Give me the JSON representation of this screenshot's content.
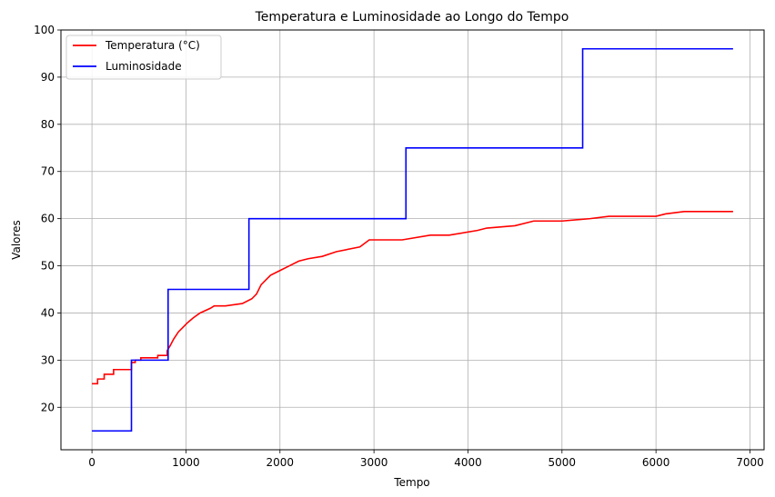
{
  "chart_data": {
    "type": "line",
    "title": "Temperatura e Luminosidade ao Longo do Tempo",
    "xlabel": "Tempo",
    "ylabel": "Valores",
    "xlim": [
      -330,
      7150
    ],
    "ylim": [
      11,
      100
    ],
    "xticks": [
      0,
      1000,
      2000,
      3000,
      4000,
      5000,
      6000,
      7000
    ],
    "yticks": [
      20,
      30,
      40,
      50,
      60,
      70,
      80,
      90,
      100
    ],
    "grid": true,
    "legend_position": "top-left",
    "series": [
      {
        "name": "Temperatura (°C)",
        "color": "#ff0000",
        "x": [
          0,
          60,
          60,
          130,
          130,
          230,
          230,
          420,
          420,
          460,
          460,
          520,
          520,
          700,
          700,
          800,
          800,
          830,
          870,
          920,
          970,
          1020,
          1080,
          1150,
          1260,
          1300,
          1420,
          1600,
          1700,
          1750,
          1800,
          1850,
          1900,
          2000,
          2100,
          2200,
          2300,
          2450,
          2600,
          2850,
          2950,
          3100,
          3300,
          3600,
          3800,
          4100,
          4200,
          4500,
          4700,
          5000,
          5300,
          5500,
          6000,
          6100,
          6300,
          6820
        ],
        "y": [
          25,
          25,
          26,
          26,
          27,
          27,
          28,
          28,
          29.5,
          29.5,
          30,
          30,
          30.5,
          30.5,
          31,
          31,
          32,
          33,
          34.5,
          36,
          37,
          38,
          39,
          40,
          41,
          41.5,
          41.5,
          42,
          43,
          44,
          46,
          47,
          48,
          49,
          50,
          51,
          51.5,
          52,
          53,
          54,
          55.5,
          55.5,
          55.5,
          56.5,
          56.5,
          57.5,
          58,
          58.5,
          59.5,
          59.5,
          60,
          60.5,
          60.5,
          61,
          61.5,
          61.5
        ]
      },
      {
        "name": "Luminosidade",
        "color": "#0000ff",
        "x": [
          0,
          420,
          420,
          810,
          810,
          1670,
          1670,
          3340,
          3340,
          5220,
          5220,
          6820
        ],
        "y": [
          15,
          15,
          30,
          30,
          45,
          45,
          60,
          60,
          75,
          75,
          96,
          96
        ]
      }
    ]
  }
}
